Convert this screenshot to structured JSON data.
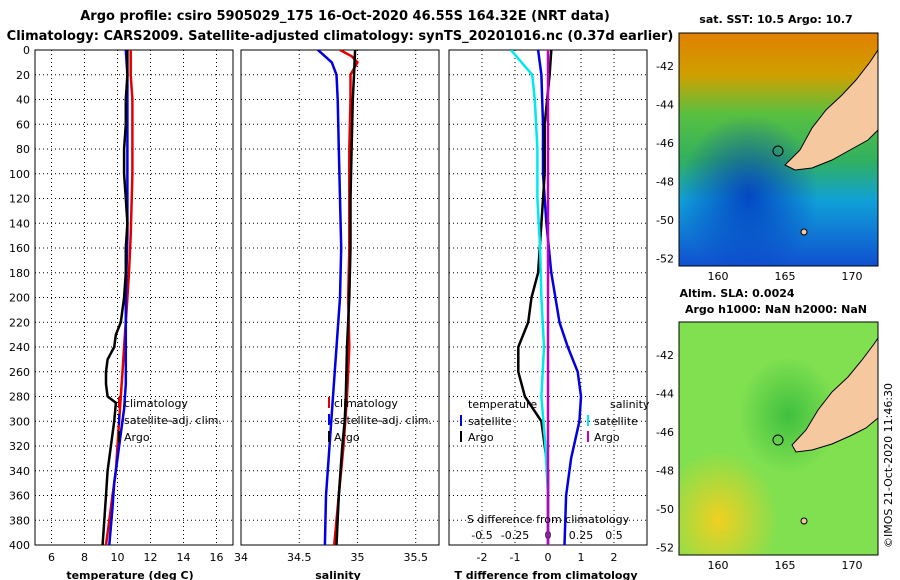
{
  "title": {
    "line1": "Argo profile: csiro 5905029_175 16-Oct-2020 46.55S 164.32E (NRT data)",
    "line2": "Climatology: CARS2009. Satellite-adjusted climatology: synTS_20201016.nc (0.37d earlier)"
  },
  "colors": {
    "climatology": "#e00000",
    "satellite": "#0000e0",
    "argo": "#000000",
    "salinity_diff": "#00e8f0",
    "salinity_argo": "#c000c0",
    "land": "#f5c8a0"
  },
  "chart_data": [
    {
      "type": "line",
      "name": "temperature-profile",
      "xlabel": "temperature (deg C)",
      "ylabel": "",
      "xlim": [
        5,
        17
      ],
      "ylim": [
        400,
        0
      ],
      "xticks": [
        6,
        8,
        10,
        12,
        14,
        16
      ],
      "yticks": [
        0,
        20,
        40,
        60,
        80,
        100,
        120,
        140,
        160,
        180,
        200,
        220,
        240,
        260,
        280,
        300,
        320,
        340,
        360,
        380,
        400
      ],
      "series": [
        {
          "name": "climatology",
          "color": "#e00000",
          "depth": [
            0,
            20,
            40,
            60,
            100,
            150,
            180,
            200,
            220,
            240,
            260,
            280,
            300,
            320,
            340,
            360,
            380,
            400
          ],
          "values": [
            10.8,
            10.8,
            10.9,
            10.9,
            10.9,
            10.8,
            10.7,
            10.6,
            10.5,
            10.4,
            10.3,
            10.2,
            10.1,
            10.0,
            9.9,
            9.7,
            9.5,
            9.3
          ]
        },
        {
          "name": "satellite-adj. clim.",
          "color": "#0000e0",
          "depth": [
            0,
            20,
            50,
            100,
            150,
            200,
            240,
            270,
            290,
            310,
            330,
            350,
            370,
            400
          ],
          "values": [
            10.5,
            10.6,
            10.6,
            10.6,
            10.6,
            10.5,
            10.5,
            10.5,
            10.4,
            10.2,
            10.0,
            9.8,
            9.7,
            9.5
          ]
        },
        {
          "name": "Argo",
          "color": "#000000",
          "depth": [
            0,
            20,
            40,
            60,
            80,
            100,
            120,
            140,
            160,
            180,
            200,
            220,
            230,
            240,
            250,
            260,
            270,
            280,
            285,
            300,
            320,
            340,
            360,
            380,
            400
          ],
          "values": [
            10.6,
            10.6,
            10.5,
            10.5,
            10.4,
            10.4,
            10.5,
            10.6,
            10.5,
            10.5,
            10.4,
            10.2,
            9.9,
            9.8,
            9.4,
            9.3,
            9.3,
            9.4,
            9.9,
            9.8,
            9.6,
            9.4,
            9.3,
            9.2,
            9.1
          ]
        }
      ],
      "legend": [
        "climatology",
        "satellite-adj. clim.",
        "Argo"
      ]
    },
    {
      "type": "line",
      "name": "salinity-profile",
      "xlabel": "salinity",
      "xlim": [
        34,
        35.7
      ],
      "ylim": [
        400,
        0
      ],
      "xticks": [
        34,
        34.5,
        35,
        35.5
      ],
      "xticklabels": [
        "34",
        "34.5",
        "35",
        "35.5"
      ],
      "series": [
        {
          "name": "climatology",
          "color": "#e00000",
          "depth": [
            0,
            5,
            10,
            20,
            40,
            80,
            120,
            160,
            200,
            240,
            280,
            320,
            360,
            400
          ],
          "values": [
            34.85,
            34.95,
            35.0,
            34.94,
            34.94,
            34.93,
            34.93,
            34.93,
            34.92,
            34.93,
            34.91,
            34.88,
            34.84,
            34.8
          ]
        },
        {
          "name": "satellite-adj. clim.",
          "color": "#0000e0",
          "depth": [
            0,
            5,
            10,
            20,
            40,
            80,
            120,
            160,
            200,
            240,
            280,
            320,
            360,
            400
          ],
          "values": [
            34.66,
            34.72,
            34.78,
            34.82,
            34.83,
            34.84,
            34.85,
            34.86,
            34.85,
            34.82,
            34.79,
            34.76,
            34.73,
            34.72
          ]
        },
        {
          "name": "Argo",
          "color": "#000000",
          "depth": [
            0,
            20,
            40,
            80,
            120,
            160,
            200,
            240,
            280,
            300,
            320,
            360,
            400
          ],
          "values": [
            34.98,
            34.97,
            34.96,
            34.95,
            34.94,
            34.94,
            34.93,
            34.91,
            34.9,
            34.89,
            34.87,
            34.84,
            34.82
          ]
        }
      ],
      "legend": [
        "climatology",
        "satellite-adj. clim.",
        "Argo"
      ]
    },
    {
      "type": "line",
      "name": "difference-profile",
      "xlabel": "T difference from climatology",
      "x2label": "S difference from climatology",
      "xlim": [
        -3,
        3
      ],
      "x2lim": [
        -0.75,
        0.75
      ],
      "ylim": [
        400,
        0
      ],
      "xticks": [
        -2,
        -1,
        0,
        1,
        2
      ],
      "x2ticks": [
        -0.5,
        -0.25,
        0,
        0.25,
        0.5
      ],
      "x2ticklabels": [
        "-0.5",
        "-0.25",
        "0",
        "0.25",
        "0.5"
      ],
      "series": [
        {
          "name": "temperature satellite",
          "color": "#0000e0",
          "depth": [
            0,
            20,
            60,
            100,
            140,
            180,
            220,
            240,
            260,
            280,
            300,
            330,
            360,
            400
          ],
          "values": [
            -0.3,
            -0.2,
            -0.15,
            -0.15,
            -0.05,
            0.1,
            0.35,
            0.6,
            0.9,
            1.0,
            0.95,
            0.7,
            0.55,
            0.5
          ]
        },
        {
          "name": "temperature Argo",
          "color": "#000000",
          "depth": [
            0,
            20,
            60,
            100,
            140,
            180,
            200,
            220,
            240,
            260,
            280,
            300,
            340,
            400
          ],
          "values": [
            0.1,
            0.05,
            -0.1,
            -0.1,
            -0.2,
            -0.3,
            -0.5,
            -0.6,
            -0.9,
            -0.9,
            -0.7,
            -0.2,
            0.0,
            0.0
          ]
        },
        {
          "name": "salinity satellite",
          "color": "#00e8f0",
          "depth": [
            0,
            10,
            20,
            40,
            80,
            120,
            160,
            200,
            240,
            280,
            320,
            360,
            400
          ],
          "values": [
            -0.28,
            -0.2,
            -0.12,
            -0.1,
            -0.08,
            -0.08,
            -0.06,
            -0.05,
            -0.03,
            -0.05,
            -0.02,
            0.0,
            0.0
          ]
        },
        {
          "name": "salinity Argo",
          "color": "#c000c0",
          "depth": [
            0,
            400
          ],
          "values": [
            0.0,
            0.0
          ]
        }
      ],
      "legend_groups": {
        "temperature": "temperature",
        "salinity": "salinity",
        "satellite": "satellite",
        "argo": "Argo"
      }
    }
  ],
  "map_sst": {
    "title": "sat. SST: 10.5 Argo: 10.7",
    "lon_ticks": [
      "160",
      "165",
      "170"
    ],
    "lat_ticks": [
      "-42",
      "-44",
      "-46",
      "-48",
      "-50",
      "-52"
    ]
  },
  "map_sla": {
    "title_line1": "Altim. SLA: 0.0024",
    "title_line2": "Argo h1000: NaN h2000: NaN",
    "lon_ticks": [
      "160",
      "165",
      "170"
    ],
    "lat_ticks": [
      "-42",
      "-44",
      "-46",
      "-48",
      "-50",
      "-52"
    ]
  },
  "credit": "©IMOS 21-Oct-2020 11:46:30",
  "labels": {
    "t_diff_legend_temperature": "temperature",
    "t_diff_legend_salinity": "salinity",
    "satellite": "satellite",
    "argo": "Argo"
  }
}
